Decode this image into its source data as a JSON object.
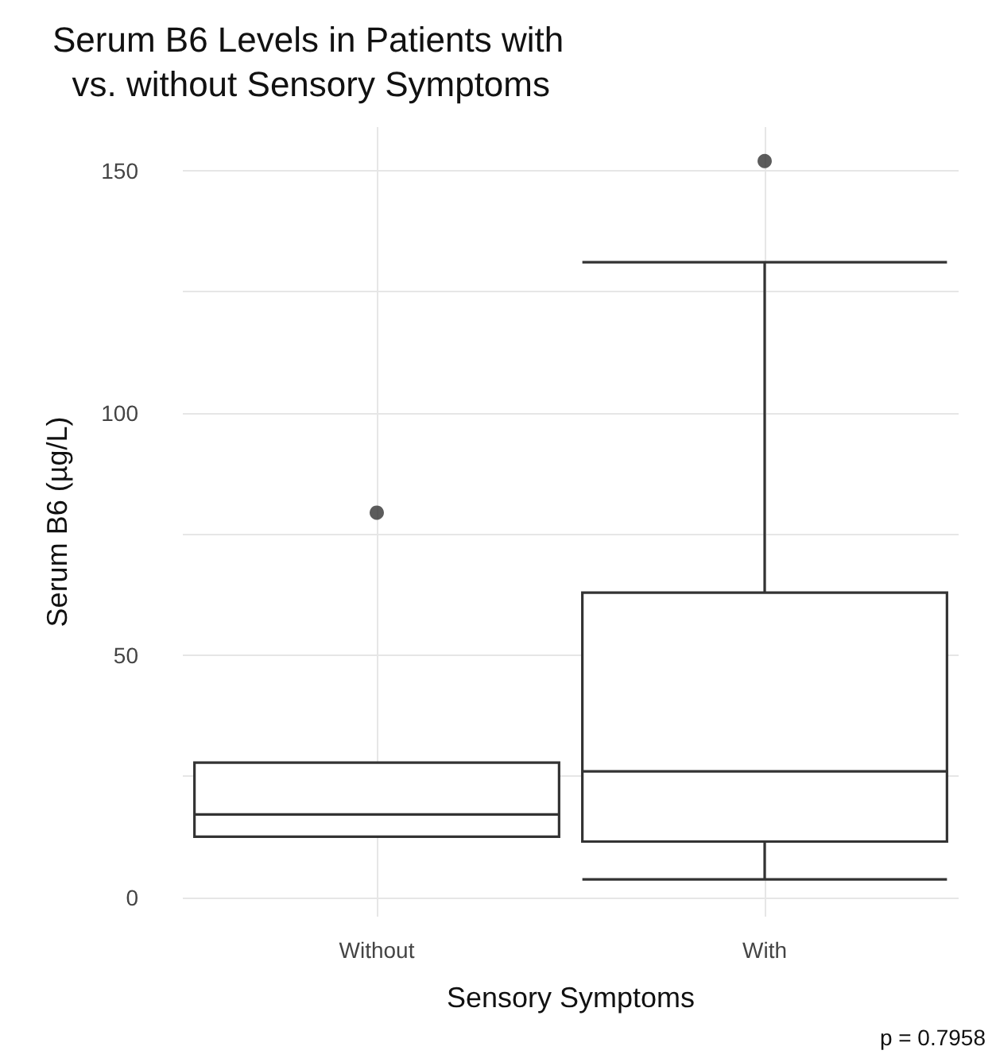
{
  "chart_data": {
    "type": "box",
    "title": "Serum B6 Levels in Patients with\n  vs. without Sensory Symptoms",
    "xlabel": "Sensory Symptoms",
    "ylabel": "Serum B6 (µg/L)",
    "categories": [
      "Without",
      "With"
    ],
    "boxes": [
      {
        "low": 12.5,
        "q1": 12.5,
        "median": 17.1,
        "q3": 27.8,
        "high": 27.8,
        "outliers": [
          79.4
        ]
      },
      {
        "low": 3.7,
        "q1": 11.5,
        "median": 26.0,
        "q3": 62.9,
        "high": 131.1,
        "outliers": [
          152.0
        ]
      }
    ],
    "color": "#333333",
    "ylim": [
      -4,
      159
    ],
    "yticks": [
      0,
      {
        "value": 25,
        "label": null
      },
      50,
      {
        "value": 75,
        "label": null
      },
      100,
      {
        "value": 125,
        "label": null
      },
      150
    ],
    "grid": true,
    "annotations": [
      "p = 0.7958"
    ]
  }
}
